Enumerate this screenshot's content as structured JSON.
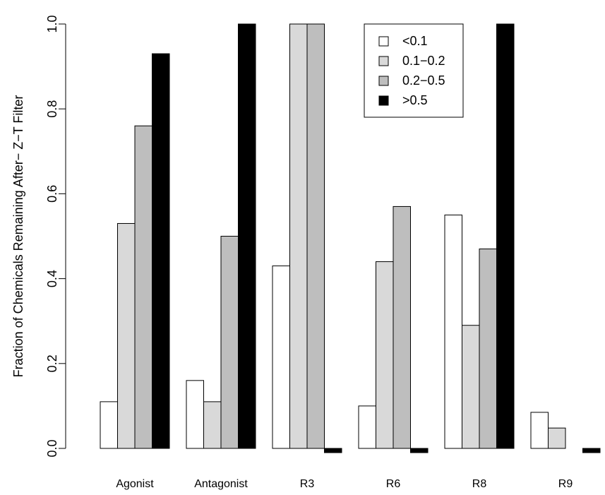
{
  "chart_data": {
    "type": "bar",
    "title": "",
    "xlabel": "",
    "ylabel": "Fraction of Chemicals Remaining After− Z−T Filter",
    "ylim": [
      0,
      1
    ],
    "yticks": [
      0.0,
      0.2,
      0.4,
      0.6,
      0.8,
      1.0
    ],
    "ytick_labels": [
      "0.0",
      "0.2",
      "0.4",
      "0.6",
      "0.8",
      "1.0"
    ],
    "categories": [
      "Agonist",
      "Antagonist",
      "R3",
      "R6",
      "R8",
      "R9"
    ],
    "series": [
      {
        "name": "<0.1",
        "color": "#ffffff",
        "values": [
          0.11,
          0.16,
          0.43,
          0.1,
          0.55,
          0.085
        ]
      },
      {
        "name": "0.1−0.2",
        "color": "#d9d9d9",
        "values": [
          0.53,
          0.11,
          1.0,
          0.44,
          0.29,
          0.048
        ]
      },
      {
        "name": "0.2−0.5",
        "color": "#bebebe",
        "values": [
          0.76,
          0.5,
          1.0,
          0.57,
          0.47,
          0.0
        ]
      },
      {
        "name": ">0.5",
        "color": "#000000",
        "values": [
          0.93,
          1.0,
          -0.01,
          -0.01,
          1.0,
          -0.01
        ]
      }
    ],
    "legend_position": "top-right",
    "grid": false
  }
}
